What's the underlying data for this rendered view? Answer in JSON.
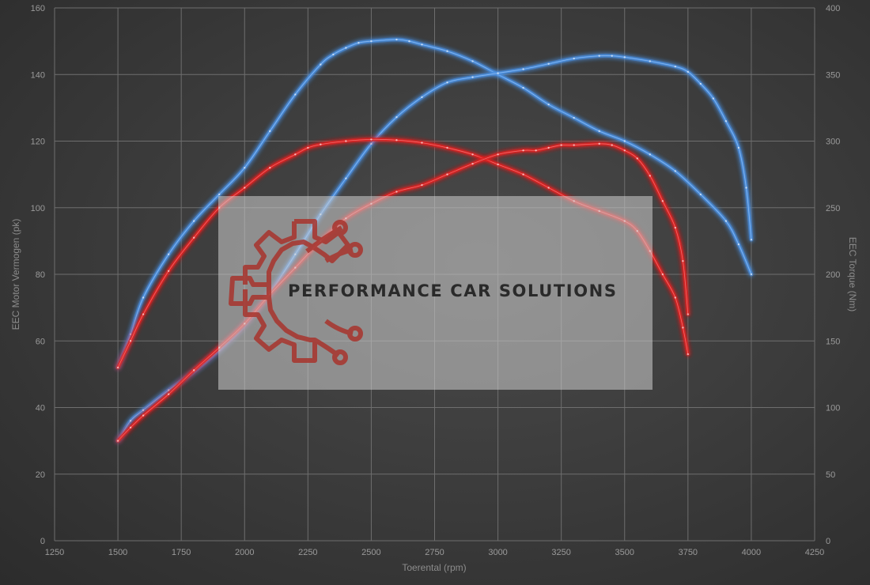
{
  "chart_data": {
    "type": "line",
    "xlabel": "Toerental (rpm)",
    "ylabel_left": "EEC Motor Vermogen (pk)",
    "ylabel_right": "EEC Torque (Nm)",
    "xlim": [
      1250,
      4250
    ],
    "xticks": [
      1250,
      1500,
      1750,
      2000,
      2250,
      2500,
      2750,
      3000,
      3250,
      3500,
      3750,
      4000,
      4250
    ],
    "ylim_left": [
      0,
      160
    ],
    "yticks_left": [
      0,
      20,
      40,
      60,
      80,
      100,
      120,
      140,
      160
    ],
    "ylim_right": [
      0,
      400
    ],
    "yticks_right": [
      0,
      50,
      100,
      150,
      200,
      250,
      300,
      350,
      400
    ],
    "grid": true,
    "series": [
      {
        "axis": "left",
        "color": "#4a90e2",
        "x": [
          1500,
          1550,
          1600,
          1700,
          1800,
          1900,
          2000,
          2100,
          2200,
          2300,
          2350,
          2400,
          2450,
          2500,
          2600,
          2650,
          2700,
          2800,
          2900,
          3000,
          3100,
          3200,
          3300,
          3400,
          3500,
          3600,
          3700,
          3800,
          3900,
          3950,
          4000
        ],
        "y": [
          52,
          62,
          73,
          86,
          96,
          104,
          112,
          123,
          134,
          143,
          146,
          148,
          149.5,
          150,
          150.5,
          150,
          149,
          147,
          144,
          140,
          136,
          131,
          127,
          123,
          120,
          116,
          111,
          104,
          96,
          89,
          80
        ]
      },
      {
        "axis": "right",
        "color": "#4a90e2",
        "x": [
          1500,
          1550,
          1600,
          1700,
          1800,
          1900,
          2000,
          2100,
          2200,
          2300,
          2400,
          2500,
          2600,
          2700,
          2800,
          2900,
          3000,
          3100,
          3200,
          3300,
          3400,
          3450,
          3500,
          3600,
          3700,
          3750,
          3800,
          3850,
          3900,
          3950,
          3980,
          4000
        ],
        "y": [
          75,
          90,
          98,
          113,
          127,
          143,
          162,
          186,
          215,
          245,
          272,
          298,
          318,
          333,
          344,
          348,
          351,
          354,
          358,
          362,
          364,
          364,
          363,
          360,
          356,
          352,
          343,
          332,
          315,
          295,
          265,
          226
        ]
      },
      {
        "axis": "left",
        "color": "#e02020",
        "x": [
          1500,
          1550,
          1600,
          1700,
          1800,
          1900,
          2000,
          2100,
          2200,
          2250,
          2300,
          2400,
          2500,
          2600,
          2700,
          2800,
          2900,
          3000,
          3100,
          3200,
          3300,
          3400,
          3500,
          3550,
          3600,
          3650,
          3700,
          3730,
          3750
        ],
        "y": [
          52,
          60,
          68,
          81,
          91,
          100,
          106,
          112,
          116,
          118,
          119,
          120,
          120.5,
          120.3,
          119.5,
          118,
          116,
          113,
          110,
          106,
          102,
          99,
          96,
          93,
          87,
          80,
          73,
          64,
          56
        ]
      },
      {
        "axis": "right",
        "color": "#e02020",
        "x": [
          1500,
          1550,
          1600,
          1700,
          1800,
          1900,
          2000,
          2100,
          2200,
          2300,
          2400,
          2500,
          2600,
          2700,
          2800,
          2900,
          3000,
          3100,
          3150,
          3200,
          3250,
          3300,
          3400,
          3450,
          3500,
          3550,
          3600,
          3650,
          3700,
          3730,
          3750
        ],
        "y": [
          75,
          85,
          94,
          110,
          128,
          145,
          163,
          185,
          205,
          225,
          242,
          253,
          262,
          267,
          275,
          283,
          290,
          293,
          293,
          295,
          297,
          297,
          298,
          297,
          293,
          287,
          274,
          255,
          235,
          210,
          170
        ]
      }
    ]
  },
  "watermark": {
    "brand_text": "PERFORMANCE CAR SOLUTIONS",
    "logo_icon": "gear-circuit-icon",
    "logo_color": "#b8322c"
  }
}
